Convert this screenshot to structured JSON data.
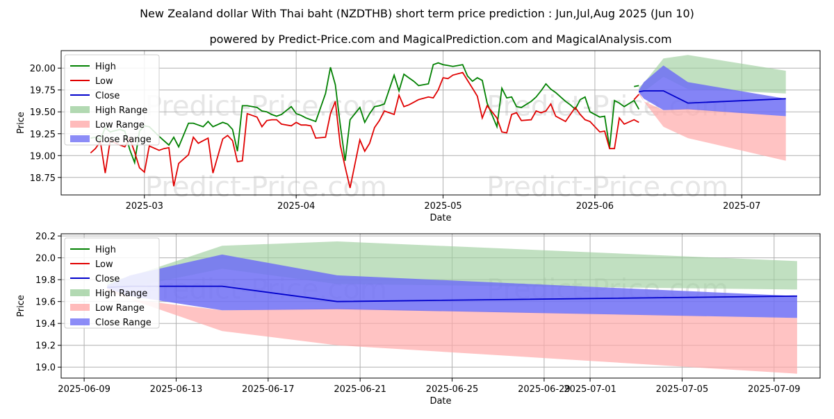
{
  "title": "New Zealand dollar With Thai baht (NZDTHB) short term price prediction : Jun,Jul,Aug 2025 (Jun 10)",
  "subtitle": "powered by Predict-Price.com and MagicalPrediction.com and MagicalAnalysis.com",
  "watermark": "Predict-Price.com",
  "colors": {
    "high": "#008000",
    "low": "#e00000",
    "close": "#0000cc",
    "high_range": "#9fd09f",
    "low_range": "#ffaaaa",
    "close_range": "#6f6ff5"
  },
  "chart_data": [
    {
      "type": "line",
      "xlabel": "Date",
      "ylabel": "Price",
      "grid": true,
      "legend_position": "top-left",
      "legend": [
        "High",
        "Low",
        "Close",
        "High Range",
        "Low Range",
        "Close Range"
      ],
      "x_ticks": [
        "2025-03",
        "2025-04",
        "2025-05",
        "2025-06",
        "2025-07"
      ],
      "y_ticks": [
        "18.75",
        "19.00",
        "19.25",
        "19.50",
        "19.75",
        "20.00"
      ],
      "xlim": [
        "2025-02-12",
        "2025-07-17"
      ],
      "ylim": [
        18.55,
        20.2
      ],
      "series": [
        {
          "name": "High",
          "x": [
            "2025-02-18",
            "2025-02-19",
            "2025-02-20",
            "2025-02-21",
            "2025-02-22",
            "2025-02-24",
            "2025-02-25",
            "2025-02-26",
            "2025-02-27",
            "2025-02-28",
            "2025-03-01",
            "2025-03-02",
            "2025-03-04",
            "2025-03-05",
            "2025-03-06",
            "2025-03-07",
            "2025-03-08",
            "2025-03-10",
            "2025-03-11",
            "2025-03-12",
            "2025-03-13",
            "2025-03-14",
            "2025-03-15",
            "2025-03-17",
            "2025-03-18",
            "2025-03-19",
            "2025-03-20",
            "2025-03-21",
            "2025-03-22",
            "2025-03-24",
            "2025-03-25",
            "2025-03-26",
            "2025-03-27",
            "2025-03-28",
            "2025-03-29",
            "2025-03-31",
            "2025-04-01",
            "2025-04-02",
            "2025-04-03",
            "2025-04-04",
            "2025-04-05",
            "2025-04-07",
            "2025-04-08",
            "2025-04-09",
            "2025-04-10",
            "2025-04-11",
            "2025-04-12",
            "2025-04-14",
            "2025-04-15",
            "2025-04-16",
            "2025-04-17",
            "2025-04-18",
            "2025-04-19",
            "2025-04-21",
            "2025-04-22",
            "2025-04-23",
            "2025-04-24",
            "2025-04-25",
            "2025-04-26",
            "2025-04-28",
            "2025-04-29",
            "2025-04-30",
            "2025-05-01",
            "2025-05-02",
            "2025-05-03",
            "2025-05-05",
            "2025-05-06",
            "2025-05-07",
            "2025-05-08",
            "2025-05-09",
            "2025-05-10",
            "2025-05-12",
            "2025-05-13",
            "2025-05-14",
            "2025-05-15",
            "2025-05-16",
            "2025-05-17",
            "2025-05-19",
            "2025-05-20",
            "2025-05-21",
            "2025-05-22",
            "2025-05-23",
            "2025-05-24",
            "2025-05-26",
            "2025-05-27",
            "2025-05-28",
            "2025-05-29",
            "2025-05-30",
            "2025-05-31",
            "2025-06-02",
            "2025-06-03",
            "2025-06-04",
            "2025-06-05",
            "2025-06-06",
            "2025-06-07",
            "2025-06-09",
            "2025-06-10"
          ],
          "values": [
            19.2,
            19.21,
            19.18,
            19.32,
            19.27,
            19.3,
            19.28,
            19.07,
            18.92,
            19.28,
            19.34,
            19.33,
            19.22,
            19.17,
            19.12,
            19.21,
            19.1,
            19.37,
            19.37,
            19.35,
            19.33,
            19.39,
            19.33,
            19.38,
            19.36,
            19.3,
            19.05,
            19.57,
            19.57,
            19.55,
            19.51,
            19.5,
            19.47,
            19.45,
            19.47,
            19.56,
            19.48,
            19.46,
            19.43,
            19.41,
            19.39,
            19.71,
            20.01,
            19.81,
            19.35,
            18.94,
            19.41,
            19.55,
            19.38,
            19.48,
            19.56,
            19.57,
            19.59,
            19.92,
            19.74,
            19.93,
            19.89,
            19.85,
            19.8,
            19.82,
            20.04,
            20.06,
            20.04,
            20.03,
            20.02,
            20.04,
            19.91,
            19.85,
            19.89,
            19.86,
            19.6,
            19.33,
            19.77,
            19.66,
            19.67,
            19.56,
            19.55,
            19.62,
            19.67,
            19.74,
            19.82,
            19.76,
            19.72,
            19.62,
            19.58,
            19.53,
            19.64,
            19.67,
            19.5,
            19.44,
            19.45,
            19.09,
            19.63,
            19.6,
            19.56,
            19.63,
            19.53
          ]
        },
        {
          "name": "Low",
          "x": [
            "2025-02-18",
            "2025-02-19",
            "2025-02-20",
            "2025-02-21",
            "2025-02-22",
            "2025-02-24",
            "2025-02-25",
            "2025-02-26",
            "2025-02-27",
            "2025-02-28",
            "2025-03-01",
            "2025-03-02",
            "2025-03-04",
            "2025-03-05",
            "2025-03-06",
            "2025-03-07",
            "2025-03-08",
            "2025-03-10",
            "2025-03-11",
            "2025-03-12",
            "2025-03-13",
            "2025-03-14",
            "2025-03-15",
            "2025-03-17",
            "2025-03-18",
            "2025-03-19",
            "2025-03-20",
            "2025-03-21",
            "2025-03-22",
            "2025-03-24",
            "2025-03-25",
            "2025-03-26",
            "2025-03-27",
            "2025-03-28",
            "2025-03-29",
            "2025-03-31",
            "2025-04-01",
            "2025-04-02",
            "2025-04-03",
            "2025-04-04",
            "2025-04-05",
            "2025-04-07",
            "2025-04-08",
            "2025-04-09",
            "2025-04-10",
            "2025-04-11",
            "2025-04-12",
            "2025-04-14",
            "2025-04-15",
            "2025-04-16",
            "2025-04-17",
            "2025-04-18",
            "2025-04-19",
            "2025-04-21",
            "2025-04-22",
            "2025-04-23",
            "2025-04-24",
            "2025-04-25",
            "2025-04-26",
            "2025-04-28",
            "2025-04-29",
            "2025-04-30",
            "2025-05-01",
            "2025-05-02",
            "2025-05-03",
            "2025-05-05",
            "2025-05-06",
            "2025-05-07",
            "2025-05-08",
            "2025-05-09",
            "2025-05-10",
            "2025-05-12",
            "2025-05-13",
            "2025-05-14",
            "2025-05-15",
            "2025-05-16",
            "2025-05-17",
            "2025-05-19",
            "2025-05-20",
            "2025-05-21",
            "2025-05-22",
            "2025-05-23",
            "2025-05-24",
            "2025-05-26",
            "2025-05-27",
            "2025-05-28",
            "2025-05-29",
            "2025-05-30",
            "2025-05-31",
            "2025-06-02",
            "2025-06-03",
            "2025-06-04",
            "2025-06-05",
            "2025-06-06",
            "2025-06-07",
            "2025-06-09",
            "2025-06-10"
          ],
          "values": [
            19.03,
            19.08,
            19.16,
            18.8,
            19.17,
            19.12,
            19.1,
            19.2,
            19.04,
            18.86,
            18.81,
            19.11,
            19.06,
            19.08,
            19.09,
            18.65,
            18.91,
            19.01,
            19.21,
            19.14,
            19.17,
            19.2,
            18.8,
            19.19,
            19.23,
            19.17,
            18.93,
            18.94,
            19.48,
            19.44,
            19.33,
            19.4,
            19.41,
            19.41,
            19.36,
            19.34,
            19.38,
            19.35,
            19.35,
            19.34,
            19.2,
            19.21,
            19.48,
            19.62,
            19.12,
            18.87,
            18.63,
            19.18,
            19.05,
            19.14,
            19.32,
            19.4,
            19.51,
            19.47,
            19.69,
            19.56,
            19.58,
            19.61,
            19.64,
            19.67,
            19.66,
            19.75,
            19.89,
            19.88,
            19.92,
            19.95,
            19.86,
            19.77,
            19.68,
            19.43,
            19.57,
            19.43,
            19.27,
            19.26,
            19.47,
            19.49,
            19.4,
            19.41,
            19.51,
            19.49,
            19.51,
            19.59,
            19.45,
            19.39,
            19.47,
            19.55,
            19.47,
            19.41,
            19.39,
            19.27,
            19.28,
            19.08,
            19.08,
            19.43,
            19.36,
            19.41,
            19.38
          ]
        }
      ]
    },
    {
      "type": "area",
      "xlabel": "Date",
      "ylabel": "Price",
      "grid": true,
      "legend_position": "top-left",
      "legend": [
        "High",
        "Low",
        "Close",
        "High Range",
        "Low Range",
        "Close Range"
      ],
      "x_ticks": [
        "2025-06-09",
        "2025-06-13",
        "2025-06-17",
        "2025-06-21",
        "2025-06-25",
        "2025-06-29",
        "2025-07-01",
        "2025-07-05",
        "2025-07-09"
      ],
      "y_ticks": [
        "19.0",
        "19.2",
        "19.4",
        "19.6",
        "19.8",
        "20.0",
        "20.2"
      ],
      "xlim": [
        "2025-06-08",
        "2025-07-11"
      ],
      "ylim": [
        18.9,
        20.22
      ],
      "series": [
        {
          "name": "Close",
          "x": [
            "2025-06-10",
            "2025-06-11",
            "2025-06-15",
            "2025-06-20",
            "2025-07-10"
          ],
          "values": [
            19.73,
            19.74,
            19.74,
            19.6,
            19.65
          ]
        },
        {
          "name": "High Range",
          "x": [
            "2025-06-10",
            "2025-06-11",
            "2025-06-15",
            "2025-06-20",
            "2025-07-10"
          ],
          "upper": [
            19.78,
            19.83,
            20.11,
            20.15,
            19.97
          ],
          "lower": [
            19.72,
            19.73,
            19.9,
            19.76,
            19.71
          ]
        },
        {
          "name": "Low Range",
          "x": [
            "2025-06-10",
            "2025-06-11",
            "2025-06-15",
            "2025-06-20",
            "2025-07-10"
          ],
          "upper": [
            19.74,
            19.62,
            19.52,
            19.54,
            19.45
          ],
          "lower": [
            19.7,
            19.62,
            19.33,
            19.2,
            18.94
          ]
        },
        {
          "name": "Close Range",
          "x": [
            "2025-06-10",
            "2025-06-11",
            "2025-06-15",
            "2025-06-20",
            "2025-07-10"
          ],
          "upper": [
            19.75,
            19.84,
            20.03,
            19.84,
            19.65
          ],
          "lower": [
            19.72,
            19.65,
            19.52,
            19.53,
            19.45
          ]
        }
      ],
      "overview_values": {
        "High": {
          "x": [
            "2025-06-09",
            "2025-06-10"
          ],
          "values": [
            19.79,
            19.8
          ]
        },
        "Low": {
          "x": [
            "2025-06-09",
            "2025-06-10"
          ],
          "values": [
            19.64,
            19.7
          ]
        }
      }
    }
  ]
}
